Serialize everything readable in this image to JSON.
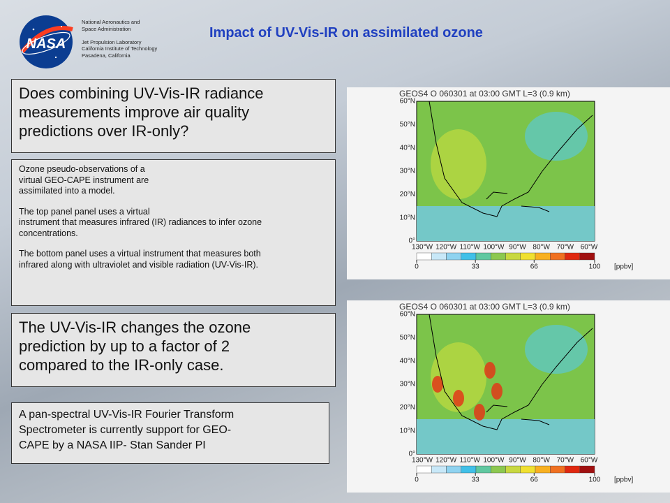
{
  "header": {
    "org_lines": [
      "National Aeronautics and",
      "Space Administration",
      "",
      "Jet Propulsion Laboratory",
      "California Institute of Technology",
      "Pasadena, California"
    ],
    "logo_text": "NASA",
    "title": "Impact of UV-Vis-IR on assimilated ozone"
  },
  "boxes": [
    {
      "paragraphs": [
        [
          "Does combining UV-Vis-IR radiance",
          "measurements improve air quality",
          "predictions over IR-only?"
        ]
      ]
    },
    {
      "paragraphs": [
        [
          "Ozone pseudo-observations of a",
          "virtual GEO-CAPE instrument are",
          "assimilated into a model."
        ],
        [
          "The top panel panel uses a virtual",
          "instrument that measures infrared (IR) radiances to infer ozone",
          "concentrations."
        ],
        [
          "The bottom panel uses a virtual instrument that measures both",
          "infrared along with ultraviolet and visible radiation (UV-Vis-IR)."
        ]
      ]
    },
    {
      "paragraphs": [
        [
          "The UV-Vis-IR changes the ozone",
          "prediction by up to a factor of 2",
          "compared to the IR-only case."
        ]
      ]
    },
    {
      "paragraphs": [
        [
          "A pan-spectral UV-Vis-IR Fourier Transform",
          "Spectrometer is currently support for GEO-",
          "CAPE by a NASA IIP- Stan Sander PI"
        ]
      ]
    }
  ],
  "maps": [
    {
      "title": "GEOS4 O  060301 at 03:00 GMT L=3 (0.9 km)",
      "lat_labels": [
        "60°N",
        "50°N",
        "40°N",
        "30°N",
        "20°N",
        "10°N",
        "0°"
      ],
      "lon_labels": [
        "130°W",
        "120°W",
        "110°W",
        "100°W",
        "90°W",
        "80°W",
        "70°W",
        "60°W"
      ],
      "colorbar_ticks": [
        0,
        33,
        66,
        100
      ],
      "unit": "[ppbv]"
    },
    {
      "title": "GEOS4 O  060301 at 03:00 GMT L=3 (0.9 km)",
      "lat_labels": [
        "60°N",
        "50°N",
        "40°N",
        "30°N",
        "20°N",
        "10°N",
        "0°"
      ],
      "lon_labels": [
        "130°W",
        "120°W",
        "110°W",
        "100°W",
        "90°W",
        "80°W",
        "70°W",
        "60°W"
      ],
      "colorbar_ticks": [
        0,
        33,
        66,
        100
      ],
      "unit": "[ppbv]"
    }
  ]
}
